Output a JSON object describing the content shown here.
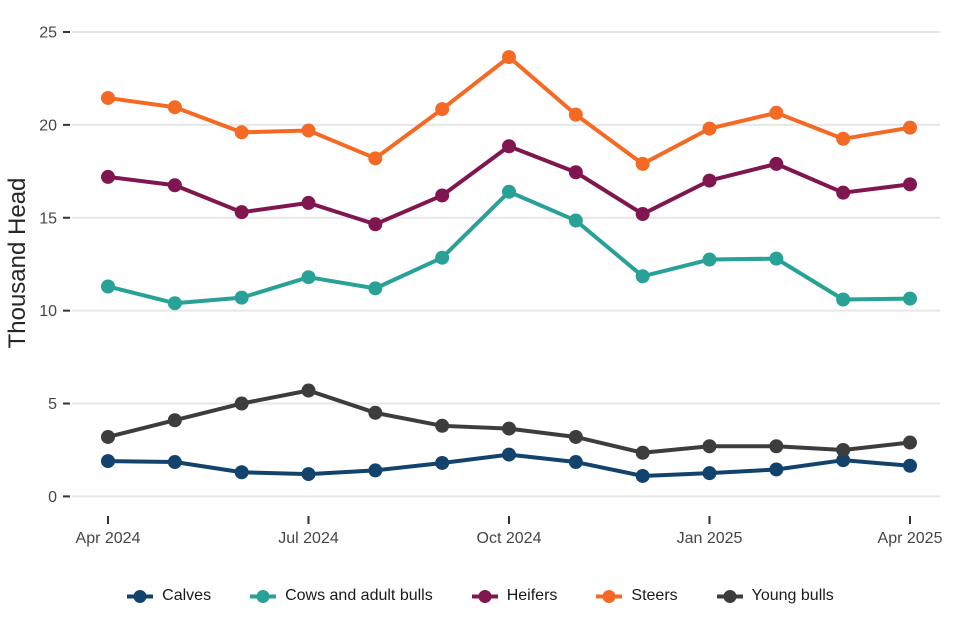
{
  "chart_data": {
    "type": "line",
    "title": "",
    "xlabel": "",
    "ylabel": "Thousand Head",
    "ylim": [
      0,
      25
    ],
    "y_ticks": [
      0,
      5,
      10,
      15,
      20,
      25
    ],
    "grid": "horizontal-only",
    "legend_position": "bottom-center",
    "x": [
      "Apr 2024",
      "May 2024",
      "Jun 2024",
      "Jul 2024",
      "Aug 2024",
      "Sep 2024",
      "Oct 2024",
      "Nov 2024",
      "Dec 2024",
      "Jan 2025",
      "Feb 2025",
      "Mar 2025",
      "Apr 2025"
    ],
    "x_tick_labels": [
      "Apr 2024",
      "Jul 2024",
      "Oct 2024",
      "Jan 2025",
      "Apr 2025"
    ],
    "x_tick_positions": [
      0,
      3,
      6,
      9,
      12
    ],
    "series": [
      {
        "name": "Calves",
        "color": "#12436D",
        "values": [
          1.9,
          1.85,
          1.3,
          1.2,
          1.4,
          1.8,
          2.25,
          1.85,
          1.1,
          1.25,
          1.45,
          1.95,
          1.65
        ]
      },
      {
        "name": "Cows and adult bulls",
        "color": "#28A197",
        "values": [
          11.3,
          10.4,
          10.7,
          11.8,
          11.2,
          12.85,
          16.4,
          14.85,
          11.85,
          12.75,
          12.8,
          10.6,
          10.65
        ]
      },
      {
        "name": "Heifers",
        "color": "#801650",
        "values": [
          17.2,
          16.75,
          15.3,
          15.8,
          14.65,
          16.2,
          18.85,
          17.45,
          15.2,
          17.0,
          17.9,
          16.35,
          16.8
        ]
      },
      {
        "name": "Steers",
        "color": "#F46A25",
        "values": [
          21.45,
          20.95,
          19.6,
          19.7,
          18.2,
          20.85,
          23.65,
          20.55,
          17.9,
          19.8,
          20.65,
          19.25,
          19.85
        ]
      },
      {
        "name": "Young bulls",
        "color": "#3D3D3D",
        "values": [
          3.2,
          4.1,
          5.0,
          5.7,
          4.5,
          3.8,
          3.65,
          3.2,
          2.35,
          2.7,
          2.7,
          2.5,
          2.9
        ]
      }
    ],
    "style": {
      "background": "#FFFFFF",
      "grid_color": "#E7E7E7",
      "tick_mark_color": "#333333",
      "tick_label_color": "#464646",
      "axis_title_color": "#262626",
      "legend_text_color": "#1A1A1A"
    }
  }
}
